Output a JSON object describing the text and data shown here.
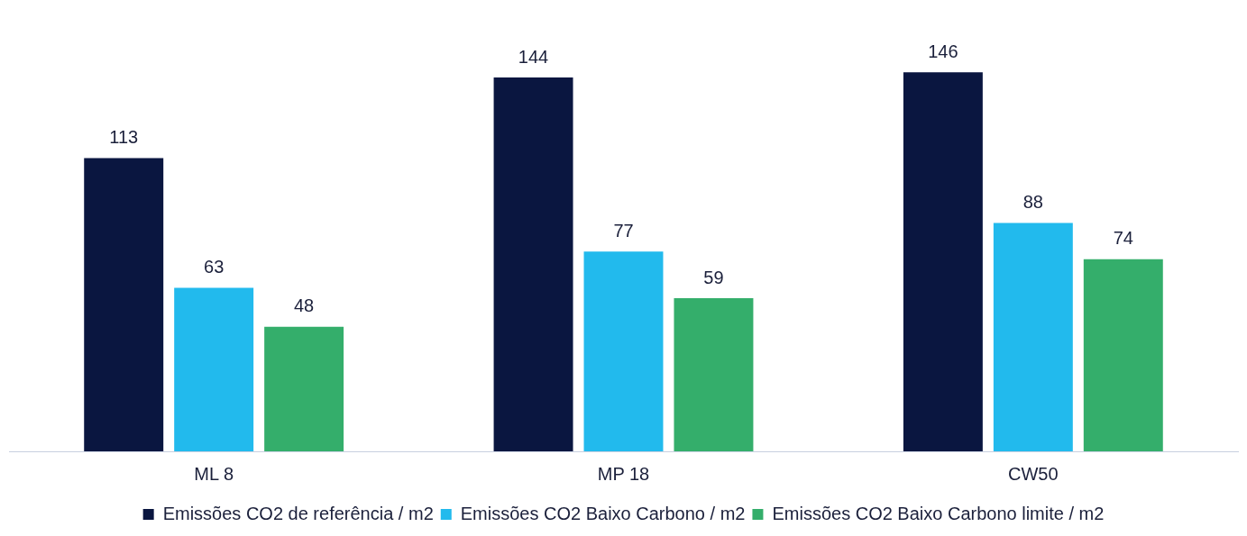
{
  "chart_data": {
    "type": "bar",
    "categories": [
      "ML 8",
      "MP 18",
      "CW50"
    ],
    "series": [
      {
        "name": "Emissões CO2 de referência / m2",
        "color": "#0a1640",
        "values": [
          113,
          144,
          146
        ]
      },
      {
        "name": "Emissões CO2 Baixo Carbono / m2",
        "color": "#22baed",
        "values": [
          63,
          77,
          88
        ]
      },
      {
        "name": "Emissões CO2 Baixo Carbono limite / m2",
        "color": "#34ae6b",
        "values": [
          48,
          59,
          74
        ]
      }
    ],
    "data_labels": true,
    "legend": "bottom",
    "grid": false
  }
}
